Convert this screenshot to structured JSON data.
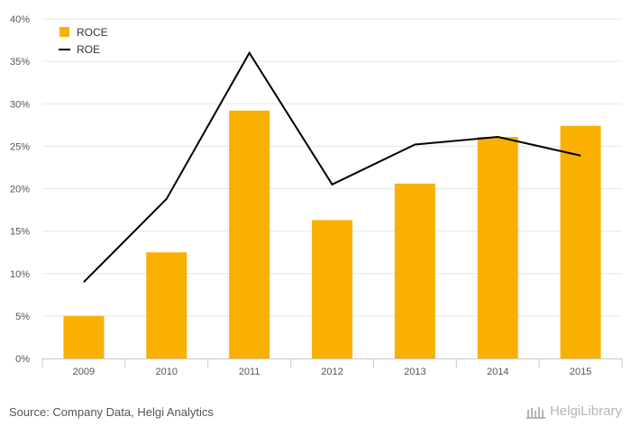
{
  "chart_data": {
    "type": "bar",
    "categories": [
      "2009",
      "2010",
      "2011",
      "2012",
      "2013",
      "2014",
      "2015"
    ],
    "series": [
      {
        "name": "ROCE",
        "type": "bar",
        "color": "#f9b000",
        "values": [
          5.0,
          12.5,
          29.2,
          16.3,
          20.6,
          26.1,
          27.4
        ]
      },
      {
        "name": "ROE",
        "type": "line",
        "color": "#000000",
        "values": [
          9.0,
          18.8,
          36.0,
          20.5,
          25.2,
          26.1,
          23.9
        ]
      }
    ],
    "y_ticks": [
      "0%",
      "5%",
      "10%",
      "15%",
      "20%",
      "25%",
      "30%",
      "35%",
      "40%"
    ],
    "ylim": [
      0,
      40
    ],
    "legend_position": "top-left",
    "grid": true
  },
  "footer": {
    "source": "Source: Company Data, Helgi Analytics",
    "brand": "HelgiLibrary"
  }
}
